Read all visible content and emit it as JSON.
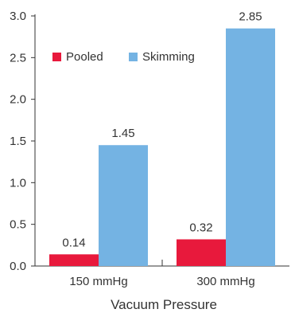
{
  "chart_data": {
    "type": "bar",
    "categories": [
      "150 mmHg",
      "300 mmHg"
    ],
    "series": [
      {
        "name": "Pooled",
        "values": [
          0.14,
          0.32
        ],
        "color": "#e8193c"
      },
      {
        "name": "Skimming",
        "values": [
          1.45,
          2.85
        ],
        "color": "#74b3e3"
      }
    ],
    "data_labels": [
      [
        "0.14",
        "0.32"
      ],
      [
        "1.45",
        "2.85"
      ]
    ],
    "title": "",
    "xlabel": "Vacuum Pressure",
    "ylabel": "",
    "ylim": [
      0,
      3.0
    ],
    "yticks": [
      "0.0",
      "0.5",
      "1.0",
      "1.5",
      "2.0",
      "2.5",
      "3.0"
    ],
    "grid": false,
    "legend_position": "top-left"
  }
}
